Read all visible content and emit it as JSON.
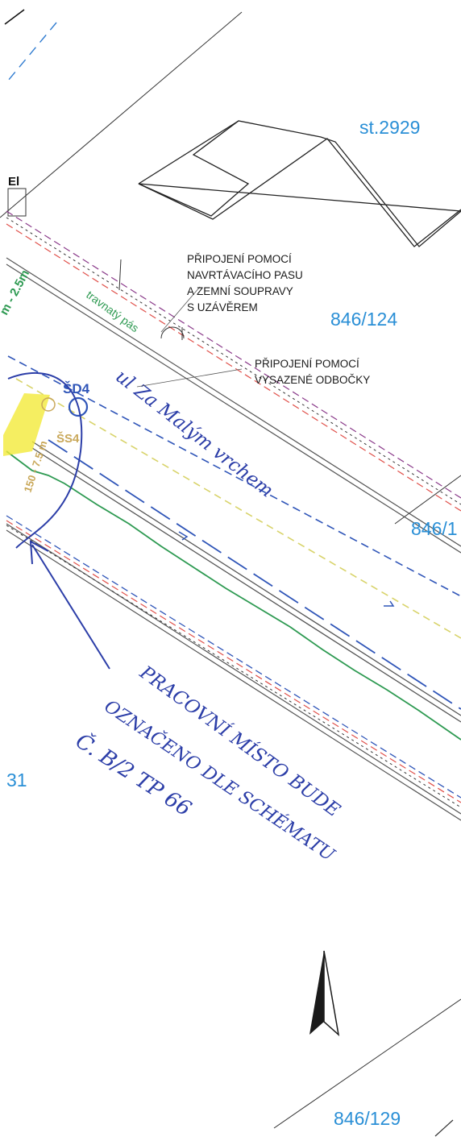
{
  "parcels": {
    "st_2929": "st.2929",
    "p_846_124": "846/124",
    "p_846_1_partial": "846/1",
    "p_31": "31",
    "p_846_129": "846/129"
  },
  "notes": {
    "line1": "PŘIPOJENÍ POMOCÍ",
    "line2": "NAVRTÁVACÍHO PASU",
    "line3": "A ZEMNÍ SOUPRAVY",
    "line4": "S UZÁVĚREM",
    "line5": "PŘIPOJENÍ POMOCÍ",
    "line6": "VYSAZENÉ ODBOČKY"
  },
  "labels": {
    "el": "El",
    "grass_strip": "travnatý pás",
    "sewer_manhole": "ŠD4",
    "water_manhole": "ŠS4",
    "street": "ul Za Malým vrchem",
    "green_dim": "m - 2.5m",
    "yellow_dim": "150 - 7.5 m"
  },
  "handwritten": {
    "line1": "PRACOVNÍ MÍSTO BUDE",
    "line2": "OZNAČENO DLE SCHÉMATU",
    "line3": "Č. B/2 TP 66"
  },
  "icons": {
    "north_arrow": "north-arrow-icon"
  },
  "colors": {
    "parcel_text": "#2a8fd6",
    "green_line": "#2e9a52",
    "blue_line": "#2f55b8",
    "red_line": "#e0504a",
    "purple_line": "#8a3a8a",
    "yellow_line": "#d8d36a",
    "handwriting": "#2c3ea8"
  }
}
